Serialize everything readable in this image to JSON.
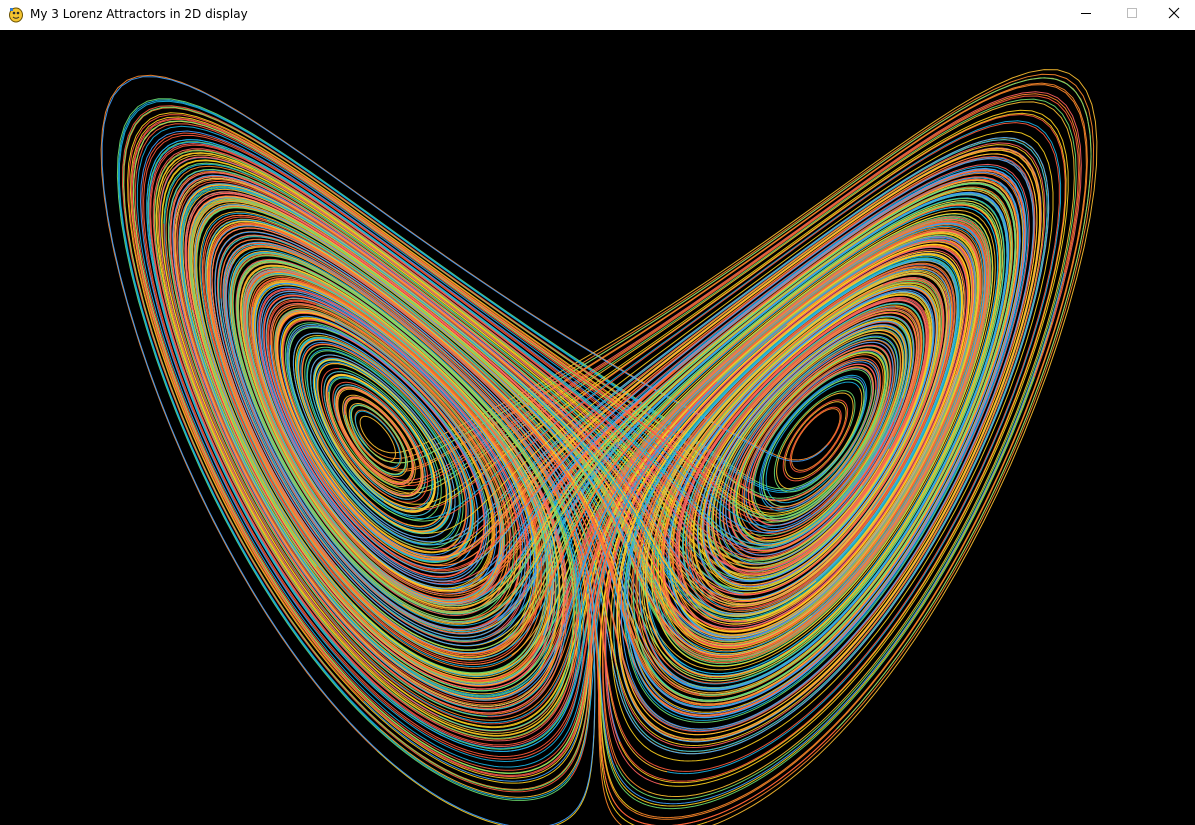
{
  "window": {
    "title": "My 3 Lorenz Attractors in 2D display",
    "app_icon": "pygame-snake-icon",
    "controls": {
      "minimize_icon": "minimize-icon",
      "maximize_icon": "maximize-icon",
      "close_icon": "close-icon"
    }
  },
  "canvas": {
    "background": "#000000",
    "attractor_count": 3,
    "palette": [
      "#ff5a3c",
      "#ffd21e",
      "#18b4e6",
      "#6ee070",
      "#ff8a2a",
      "#3fa0ff",
      "#ff6060",
      "#ffc030"
    ]
  }
}
